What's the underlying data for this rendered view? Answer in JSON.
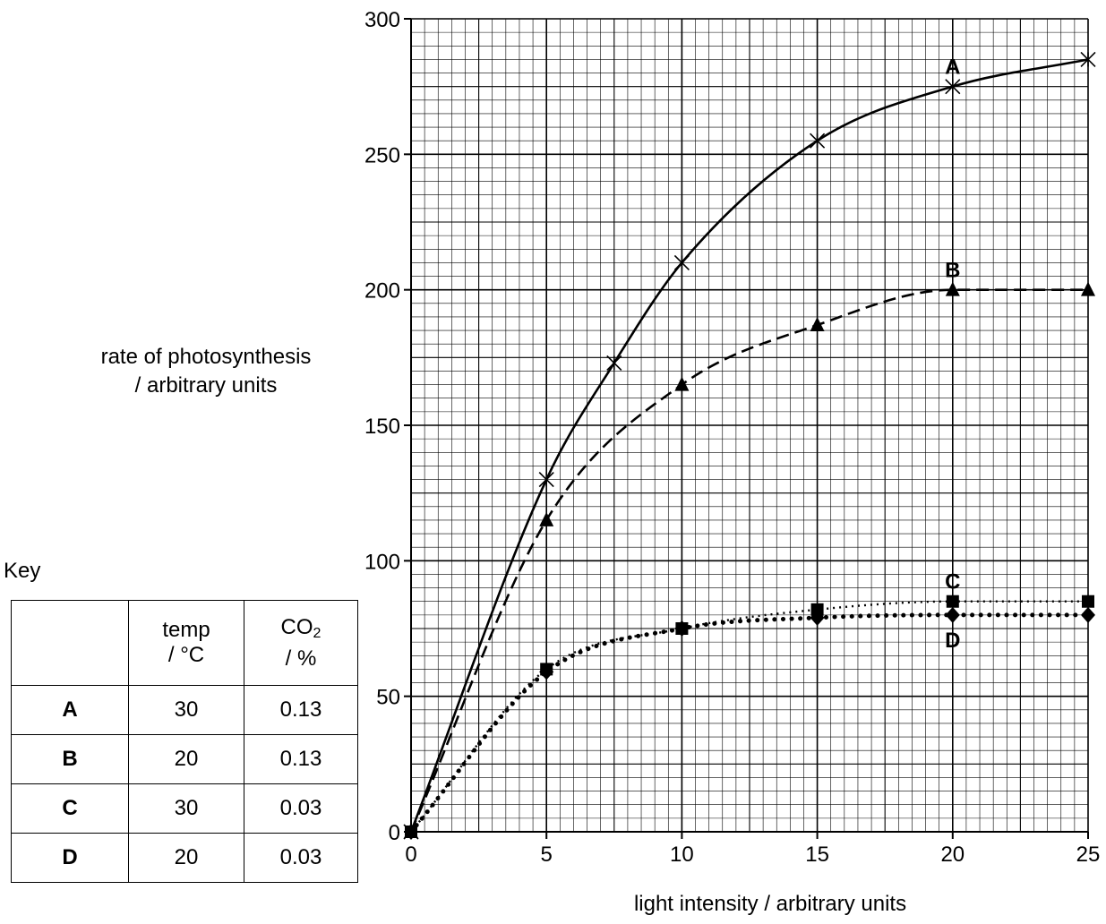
{
  "chart_data": {
    "type": "line",
    "xlabel": "light intensity / arbitrary units",
    "ylabel": [
      "rate of photosynthesis",
      "/ arbitrary units"
    ],
    "xlim": [
      0,
      25
    ],
    "ylim": [
      0,
      300
    ],
    "xticks": [
      0,
      5,
      10,
      15,
      20,
      25
    ],
    "yticks": [
      0,
      50,
      100,
      150,
      200,
      250,
      300
    ],
    "grid": true,
    "series": [
      {
        "name": "A",
        "marker": "asterisk",
        "line": "solid",
        "x": [
          0,
          5,
          7.5,
          10,
          15,
          20,
          25
        ],
        "y": [
          0,
          130,
          173,
          210,
          255,
          275,
          285
        ]
      },
      {
        "name": "B",
        "marker": "triangle",
        "line": "dashed",
        "x": [
          0,
          5,
          10,
          15,
          20,
          25
        ],
        "y": [
          0,
          115,
          165,
          187,
          200,
          200
        ]
      },
      {
        "name": "C",
        "marker": "square",
        "line": "cross-dotted",
        "x": [
          0,
          5,
          10,
          15,
          20,
          25
        ],
        "y": [
          0,
          60,
          75,
          82,
          85,
          85
        ]
      },
      {
        "name": "D",
        "marker": "diamond",
        "line": "dotted",
        "x": [
          0,
          5,
          10,
          15,
          20,
          25
        ],
        "y": [
          0,
          59,
          75,
          79,
          80,
          80
        ]
      }
    ]
  },
  "key": {
    "title": "Key",
    "headers": {
      "temp_line1": "temp",
      "temp_line2": "/ °C",
      "co2_main": "CO",
      "co2_sub": "2",
      "co2_line2": "/ %"
    },
    "rows": [
      {
        "label": "A",
        "temp": "30",
        "co2": "0.13"
      },
      {
        "label": "B",
        "temp": "20",
        "co2": "0.13"
      },
      {
        "label": "C",
        "temp": "30",
        "co2": "0.03"
      },
      {
        "label": "D",
        "temp": "20",
        "co2": "0.03"
      }
    ]
  }
}
